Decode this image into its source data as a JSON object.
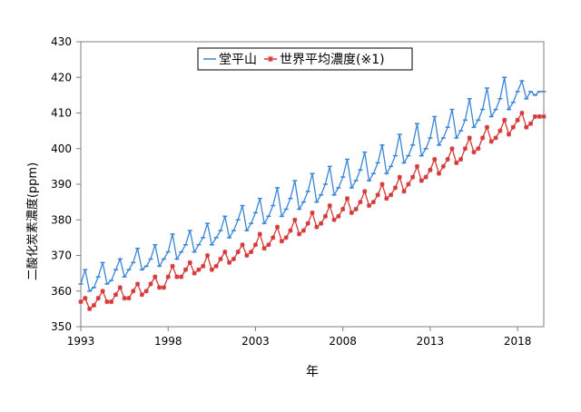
{
  "chart_data": {
    "type": "line",
    "title": "",
    "xlabel": "年",
    "ylabel": "二酸化炭素濃度(ppm)",
    "xlim": [
      1993,
      2019.5
    ],
    "ylim": [
      350,
      430
    ],
    "x_ticks": [
      1993,
      1998,
      2003,
      2008,
      2013,
      2018
    ],
    "y_ticks": [
      350,
      360,
      370,
      380,
      390,
      400,
      410,
      420,
      430
    ],
    "grid": false,
    "legend_position": "top-center",
    "series": [
      {
        "name": "堂平山",
        "color": "#3a85d6",
        "marker": "dash",
        "x": [
          1993.0,
          1993.25,
          1993.5,
          1993.75,
          1994.0,
          1994.25,
          1994.5,
          1994.75,
          1995.0,
          1995.25,
          1995.5,
          1995.75,
          1996.0,
          1996.25,
          1996.5,
          1996.75,
          1997.0,
          1997.25,
          1997.5,
          1997.75,
          1998.0,
          1998.25,
          1998.5,
          1998.75,
          1999.0,
          1999.25,
          1999.5,
          1999.75,
          2000.0,
          2000.25,
          2000.5,
          2000.75,
          2001.0,
          2001.25,
          2001.5,
          2001.75,
          2002.0,
          2002.25,
          2002.5,
          2002.75,
          2003.0,
          2003.25,
          2003.5,
          2003.75,
          2004.0,
          2004.25,
          2004.5,
          2004.75,
          2005.0,
          2005.25,
          2005.5,
          2005.75,
          2006.0,
          2006.25,
          2006.5,
          2006.75,
          2007.0,
          2007.25,
          2007.5,
          2007.75,
          2008.0,
          2008.25,
          2008.5,
          2008.75,
          2009.0,
          2009.25,
          2009.5,
          2009.75,
          2010.0,
          2010.25,
          2010.5,
          2010.75,
          2011.0,
          2011.25,
          2011.5,
          2011.75,
          2012.0,
          2012.25,
          2012.5,
          2012.75,
          2013.0,
          2013.25,
          2013.5,
          2013.75,
          2014.0,
          2014.25,
          2014.5,
          2014.75,
          2015.0,
          2015.25,
          2015.5,
          2015.75,
          2016.0,
          2016.25,
          2016.5,
          2016.75,
          2017.0,
          2017.25,
          2017.5,
          2017.75,
          2018.0,
          2018.25,
          2018.5,
          2018.75,
          2019.0,
          2019.25,
          2019.5
        ],
        "y": [
          362,
          366,
          360,
          361,
          364,
          368,
          362,
          363,
          366,
          369,
          364,
          366,
          368,
          372,
          366,
          367,
          369,
          373,
          367,
          369,
          371,
          376,
          369,
          371,
          373,
          377,
          371,
          373,
          375,
          379,
          373,
          375,
          377,
          381,
          375,
          377,
          380,
          384,
          377,
          379,
          382,
          386,
          379,
          381,
          384,
          389,
          381,
          383,
          386,
          391,
          383,
          385,
          388,
          393,
          385,
          387,
          390,
          395,
          387,
          389,
          392,
          397,
          389,
          391,
          394,
          399,
          391,
          393,
          396,
          401,
          393,
          395,
          398,
          404,
          396,
          398,
          401,
          407,
          398,
          400,
          403,
          409,
          401,
          403,
          406,
          411,
          403,
          405,
          408,
          414,
          406,
          408,
          411,
          417,
          409,
          411,
          414,
          420,
          411,
          413,
          416,
          419,
          414,
          416,
          415,
          416,
          416
        ]
      },
      {
        "name": "世界平均濃度(※1)",
        "color": "#d43a3a",
        "marker": "asterisk",
        "x": [
          1993.0,
          1993.25,
          1993.5,
          1993.75,
          1994.0,
          1994.25,
          1994.5,
          1994.75,
          1995.0,
          1995.25,
          1995.5,
          1995.75,
          1996.0,
          1996.25,
          1996.5,
          1996.75,
          1997.0,
          1997.25,
          1997.5,
          1997.75,
          1998.0,
          1998.25,
          1998.5,
          1998.75,
          1999.0,
          1999.25,
          1999.5,
          1999.75,
          2000.0,
          2000.25,
          2000.5,
          2000.75,
          2001.0,
          2001.25,
          2001.5,
          2001.75,
          2002.0,
          2002.25,
          2002.5,
          2002.75,
          2003.0,
          2003.25,
          2003.5,
          2003.75,
          2004.0,
          2004.25,
          2004.5,
          2004.75,
          2005.0,
          2005.25,
          2005.5,
          2005.75,
          2006.0,
          2006.25,
          2006.5,
          2006.75,
          2007.0,
          2007.25,
          2007.5,
          2007.75,
          2008.0,
          2008.25,
          2008.5,
          2008.75,
          2009.0,
          2009.25,
          2009.5,
          2009.75,
          2010.0,
          2010.25,
          2010.5,
          2010.75,
          2011.0,
          2011.25,
          2011.5,
          2011.75,
          2012.0,
          2012.25,
          2012.5,
          2012.75,
          2013.0,
          2013.25,
          2013.5,
          2013.75,
          2014.0,
          2014.25,
          2014.5,
          2014.75,
          2015.0,
          2015.25,
          2015.5,
          2015.75,
          2016.0,
          2016.25,
          2016.5,
          2016.75,
          2017.0,
          2017.25,
          2017.5,
          2017.75,
          2018.0,
          2018.25,
          2018.5,
          2018.75,
          2019.0,
          2019.25,
          2019.5
        ],
        "y": [
          357,
          358,
          355,
          356,
          358,
          360,
          357,
          357,
          359,
          361,
          358,
          358,
          360,
          362,
          359,
          360,
          362,
          364,
          361,
          361,
          364,
          367,
          364,
          364,
          366,
          368,
          365,
          366,
          367,
          370,
          366,
          367,
          369,
          371,
          368,
          369,
          371,
          373,
          370,
          371,
          373,
          376,
          372,
          373,
          375,
          378,
          374,
          375,
          377,
          380,
          376,
          377,
          379,
          382,
          378,
          379,
          381,
          384,
          380,
          381,
          383,
          386,
          382,
          383,
          385,
          388,
          384,
          385,
          387,
          390,
          386,
          387,
          389,
          392,
          388,
          390,
          392,
          395,
          391,
          392,
          394,
          397,
          393,
          395,
          397,
          400,
          396,
          397,
          400,
          403,
          399,
          400,
          403,
          406,
          402,
          403,
          405,
          408,
          404,
          406,
          408,
          410,
          406,
          407,
          409,
          409,
          409
        ]
      }
    ]
  }
}
